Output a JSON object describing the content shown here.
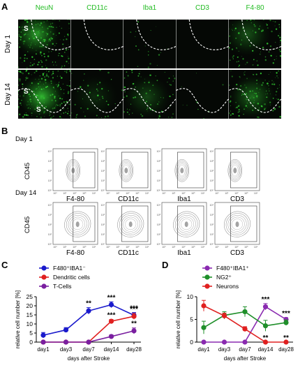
{
  "panel_a": {
    "letter": "A",
    "columns": [
      "NeuN",
      "CD11c",
      "Iba1",
      "CD3",
      "F4-80"
    ],
    "rows": [
      "Day 1",
      "Day 14"
    ],
    "region_marker": "S",
    "colors": {
      "label": "#22bb22",
      "fluorescence": "#33cc33",
      "boundary": "#ffffff"
    }
  },
  "panel_b": {
    "letter": "B",
    "rows": [
      "Day 1",
      "Day 14"
    ],
    "y_label": "CD45",
    "x_labels": [
      "F4-80",
      "CD11c",
      "Iba1",
      "CD3"
    ],
    "tick_labels": [
      "10⁰",
      "10¹",
      "10²",
      "10³",
      "10⁴"
    ]
  },
  "chart_data": [
    {
      "type": "line",
      "panel": "C",
      "ylabel": "relative cell number [%]",
      "xlabel": "days after Stroke",
      "categories": [
        "day1",
        "day3",
        "day7",
        "day14",
        "day28"
      ],
      "ylim": [
        0,
        25
      ],
      "yticks": [
        0,
        5,
        10,
        15,
        20,
        25
      ],
      "legend_position": "top-left",
      "series": [
        {
          "name": "F480⁺IBA1⁻",
          "color": "#1a1acc",
          "values": [
            3.8,
            6.7,
            17.2,
            20.6,
            14.8
          ],
          "errors": [
            1.5,
            1.3,
            1.8,
            1.6,
            1.5
          ],
          "annotations": [
            "",
            "",
            "**",
            "***",
            "***"
          ]
        },
        {
          "name": "Dendritic cells",
          "color": "#e02020",
          "values": [
            0,
            0,
            0,
            11.5,
            14.2
          ],
          "errors": [
            0,
            0,
            0,
            1.0,
            1.6
          ],
          "annotations": [
            "",
            "",
            "",
            "***",
            "***"
          ]
        },
        {
          "name": "T-Cells",
          "color": "#7a1fa0",
          "values": [
            0,
            0,
            0,
            3.1,
            6.2
          ],
          "errors": [
            0,
            0,
            0,
            0.9,
            1.6
          ],
          "annotations": [
            "",
            "",
            "",
            "",
            "**"
          ]
        }
      ]
    },
    {
      "type": "line",
      "panel": "D",
      "ylabel": "relative cell number [%]",
      "xlabel": "days after Stroke",
      "categories": [
        "day1",
        "day3",
        "day7",
        "day14",
        "day28"
      ],
      "ylim": [
        0,
        10
      ],
      "yticks": [
        0,
        5,
        10
      ],
      "legend_position": "top-right",
      "series": [
        {
          "name": "F480⁺IBA1⁺",
          "color": "#8a2ab0",
          "values": [
            0,
            0,
            0,
            7.8,
            5.0
          ],
          "errors": [
            0,
            0,
            0,
            0.7,
            0.4
          ],
          "annotations": [
            "",
            "",
            "",
            "***",
            "***"
          ]
        },
        {
          "name": "NG2⁺",
          "color": "#1f8f2a",
          "values": [
            3.2,
            5.9,
            6.7,
            3.6,
            4.3
          ],
          "errors": [
            1.4,
            0.8,
            1.1,
            1.2,
            0.6
          ],
          "annotations": [
            "",
            "",
            "",
            "",
            ""
          ]
        },
        {
          "name": "Neurons",
          "color": "#e02020",
          "values": [
            8.0,
            5.8,
            2.9,
            0,
            0
          ],
          "errors": [
            1.2,
            0.6,
            0.5,
            0,
            0
          ],
          "annotations": [
            "",
            "",
            "",
            "**",
            "**"
          ]
        }
      ]
    }
  ]
}
